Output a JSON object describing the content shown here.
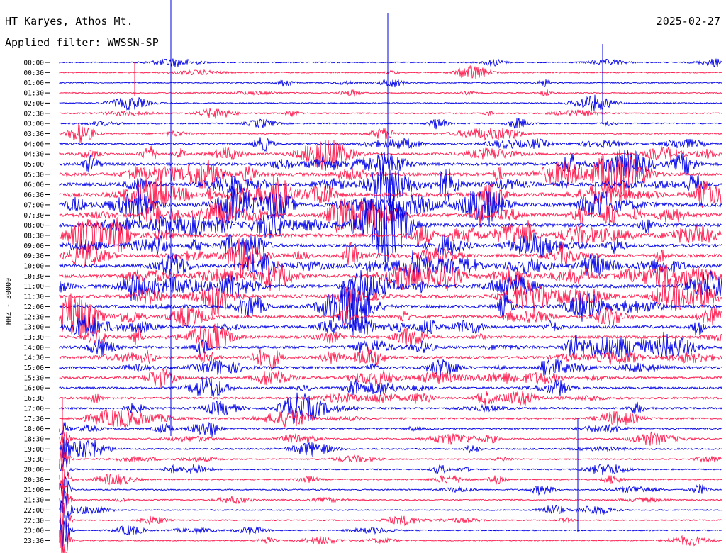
{
  "header": {
    "station": "HT Karyes, Athos Mt.",
    "filter": "Applied filter: WWSSN-SP",
    "date": "2025-02-27"
  },
  "chart_data": {
    "type": "line",
    "title": "HT Karyes, Athos Mt.",
    "subtitle": "Applied filter: WWSSN-SP",
    "date": "2025-02-27",
    "ylabel": "HHZ - 30000",
    "row_labels": [
      "00:00",
      "00:30",
      "01:00",
      "01:30",
      "02:00",
      "02:30",
      "03:00",
      "03:30",
      "04:00",
      "04:30",
      "05:00",
      "05:30",
      "06:00",
      "06:30",
      "07:00",
      "07:30",
      "08:00",
      "08:30",
      "09:00",
      "09:30",
      "10:00",
      "10:30",
      "11:00",
      "11:30",
      "12:00",
      "12:30",
      "13:00",
      "13:30",
      "14:00",
      "14:30",
      "15:00",
      "15:30",
      "16:00",
      "16:30",
      "17:00",
      "17:30",
      "18:00",
      "18:30",
      "19:00",
      "19:30",
      "20:00",
      "20:30",
      "21:00",
      "21:30",
      "22:00",
      "22:30",
      "23:00",
      "23:30"
    ],
    "row_activity": [
      0.08,
      0.08,
      0.09,
      0.09,
      0.1,
      0.12,
      0.14,
      0.18,
      0.3,
      0.45,
      0.6,
      0.75,
      0.85,
      0.9,
      0.9,
      0.85,
      0.8,
      0.75,
      0.72,
      0.72,
      0.75,
      0.75,
      0.78,
      0.75,
      0.7,
      0.65,
      0.6,
      0.55,
      0.55,
      0.55,
      0.5,
      0.45,
      0.4,
      0.38,
      0.35,
      0.3,
      0.22,
      0.2,
      0.18,
      0.16,
      0.14,
      0.12,
      0.1,
      0.1,
      0.09,
      0.09,
      0.09,
      0.09
    ],
    "colors": [
      "#0000e6",
      "#ff1a4d"
    ]
  }
}
